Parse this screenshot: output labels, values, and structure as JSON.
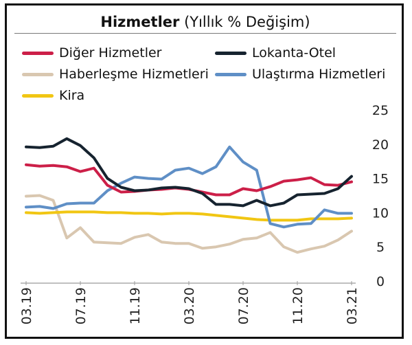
{
  "title": {
    "main": "Hizmetler",
    "sub": "(Yıllık % Değişim)"
  },
  "legend": [
    {
      "name": "Diğer Hizmetler",
      "color": "#cc1f48"
    },
    {
      "name": "Lokanta-Otel",
      "color": "#16232f"
    },
    {
      "name": "Haberleşme Hizmetleri",
      "color": "#d9c7b0"
    },
    {
      "name": "Ulaştırma Hizmetleri",
      "color": "#5f8fc6"
    },
    {
      "name": "Kira",
      "color": "#f1c613"
    }
  ],
  "chart_data": {
    "type": "line",
    "title": "Hizmetler (Yıllık % Değişim)",
    "xlabel": "",
    "ylabel": "",
    "ylim": [
      0,
      25
    ],
    "yticks": [
      "0",
      "5",
      "10",
      "15",
      "20",
      "25"
    ],
    "x": [
      "03.19",
      "04.19",
      "05.19",
      "06.19",
      "07.19",
      "08.19",
      "09.19",
      "10.19",
      "11.19",
      "12.19",
      "01.20",
      "02.20",
      "03.20",
      "04.20",
      "05.20",
      "06.20",
      "07.20",
      "08.20",
      "09.20",
      "10.20",
      "11.20",
      "12.20",
      "01.21",
      "02.21",
      "03.21"
    ],
    "xticks": [
      "03.19",
      "07.19",
      "11.19",
      "03.20",
      "07.20",
      "11.20",
      "03.21"
    ],
    "grid": false,
    "legend_position": "top",
    "series": [
      {
        "name": "Diğer Hizmetler",
        "color": "#cc1f48",
        "values": [
          17.0,
          16.8,
          16.9,
          16.7,
          16.0,
          16.5,
          14.0,
          13.0,
          13.1,
          13.3,
          13.4,
          13.6,
          13.4,
          13.0,
          12.6,
          12.6,
          13.5,
          13.2,
          13.8,
          14.6,
          14.8,
          15.1,
          14.1,
          14.0,
          14.5
        ]
      },
      {
        "name": "Lokanta-Otel",
        "color": "#16232f",
        "values": [
          19.6,
          19.5,
          19.7,
          20.8,
          19.8,
          18.0,
          15.0,
          13.7,
          13.2,
          13.3,
          13.6,
          13.7,
          13.5,
          12.8,
          11.2,
          11.2,
          11.0,
          11.8,
          11.0,
          11.4,
          12.6,
          12.7,
          12.8,
          13.5,
          15.3
        ]
      },
      {
        "name": "Haberleşme Hizmetleri",
        "color": "#d9c7b0",
        "values": [
          12.4,
          12.5,
          11.8,
          6.3,
          7.8,
          5.7,
          5.6,
          5.5,
          6.4,
          6.8,
          5.7,
          5.5,
          5.5,
          4.8,
          5.0,
          5.4,
          6.1,
          6.3,
          7.1,
          5.0,
          4.2,
          4.7,
          5.1,
          6.0,
          7.3
        ]
      },
      {
        "name": "Ulaştırma Hizmetleri",
        "color": "#5f8fc6",
        "values": [
          10.8,
          10.9,
          10.6,
          11.3,
          11.4,
          11.4,
          13.2,
          14.3,
          15.2,
          15.0,
          14.9,
          16.2,
          16.5,
          15.7,
          16.7,
          19.6,
          17.4,
          16.2,
          8.4,
          7.9,
          8.3,
          8.4,
          10.4,
          9.9,
          9.9
        ]
      },
      {
        "name": "Kira",
        "color": "#f1c613",
        "values": [
          10.0,
          9.9,
          10.0,
          10.1,
          10.1,
          10.1,
          10.0,
          10.0,
          9.9,
          9.9,
          9.8,
          9.9,
          9.9,
          9.8,
          9.6,
          9.4,
          9.2,
          9.0,
          8.9,
          8.9,
          8.9,
          9.1,
          9.1,
          9.1,
          9.2
        ]
      }
    ]
  }
}
